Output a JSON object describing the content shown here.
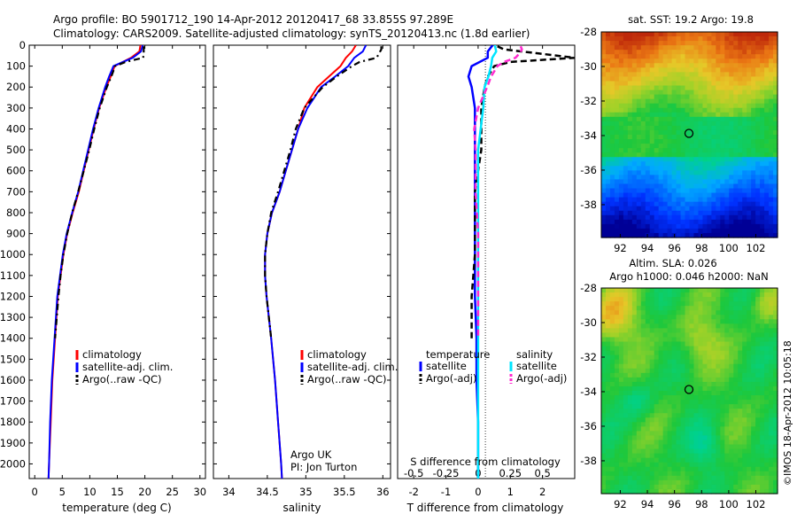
{
  "title_line1": "Argo profile: BO 5901712_190 14-Apr-2012 20120417_68 33.855S 97.289E",
  "title_line2": "Climatology: CARS2009. Satellite-adjusted climatology: synTS_20120413.nc (1.8d earlier)",
  "sst_title": "sat. SST: 19.2 Argo: 19.8",
  "sla_title_1": "Altim. SLA: 0.026",
  "sla_title_2": "Argo h1000: 0.046 h2000: NaN",
  "side_stamp": "©IMOS 18-Apr-2012 10:05:18",
  "argo_org": "Argo UK",
  "argo_pi": "PI: Jon Turton",
  "colors": {
    "clim": "#ff0000",
    "sat": "#0000ff",
    "argo": "#000000",
    "sal_sat": "#00e5ff",
    "sal_argo": "#ff2bd0"
  },
  "chart_data": [
    {
      "type": "line",
      "id": "temperature",
      "xlabel": "temperature (deg C)",
      "ylabel": "",
      "xlim": [
        -1,
        31
      ],
      "ylim": [
        2070,
        0
      ],
      "x_ticks": [
        0,
        5,
        10,
        15,
        20,
        25,
        30
      ],
      "y_ticks": [
        0,
        100,
        200,
        300,
        400,
        500,
        600,
        700,
        800,
        900,
        1000,
        1100,
        1200,
        1300,
        1400,
        1500,
        1600,
        1700,
        1800,
        1900,
        2000
      ],
      "legend": [
        "climatology",
        "satellite-adj. clim.",
        "Argo(..raw -QC)"
      ],
      "series": [
        {
          "name": "climatology",
          "depth": [
            0,
            30,
            60,
            100,
            150,
            200,
            300,
            400,
            500,
            600,
            700,
            800,
            900,
            1000,
            1200,
            1400,
            1600,
            1800,
            2000,
            2070
          ],
          "values": [
            19.2,
            19.0,
            17.5,
            14.5,
            13.8,
            13.0,
            11.7,
            10.7,
            9.8,
            8.9,
            8.0,
            6.9,
            5.9,
            5.2,
            4.2,
            3.7,
            3.2,
            2.9,
            2.6,
            2.5
          ]
        },
        {
          "name": "satellite-adj. clim.",
          "depth": [
            0,
            30,
            60,
            100,
            150,
            200,
            300,
            400,
            500,
            600,
            700,
            800,
            900,
            1000,
            1200,
            1400,
            1600,
            1800,
            2000,
            2070
          ],
          "values": [
            19.6,
            19.3,
            17.8,
            14.3,
            13.5,
            12.8,
            11.6,
            10.6,
            9.7,
            8.8,
            7.9,
            6.8,
            5.8,
            5.1,
            4.1,
            3.6,
            3.1,
            2.8,
            2.6,
            2.5
          ]
        },
        {
          "name": "Argo(..raw -QC)",
          "depth": [
            5,
            20,
            40,
            60,
            80,
            100,
            150,
            200,
            300,
            400,
            500,
            600,
            700,
            800,
            900,
            1000,
            1100,
            1200,
            1300,
            1400
          ],
          "values": [
            19.8,
            19.8,
            19.8,
            19.7,
            16.5,
            14.6,
            13.9,
            13.1,
            11.8,
            10.8,
            9.9,
            8.9,
            7.9,
            6.8,
            5.9,
            5.2,
            4.7,
            4.3,
            4.0,
            3.7
          ]
        }
      ]
    },
    {
      "type": "line",
      "id": "salinity",
      "xlabel": "salinity",
      "ylabel": "",
      "xlim": [
        33.8,
        36.1
      ],
      "ylim": [
        2070,
        0
      ],
      "x_ticks": [
        34,
        34.5,
        35,
        35.5,
        36
      ],
      "legend": [
        "climatology",
        "satellite-adj. clim.",
        "Argo(..raw -QC)"
      ],
      "series": [
        {
          "name": "climatology",
          "depth": [
            0,
            30,
            60,
            100,
            150,
            200,
            300,
            400,
            500,
            600,
            700,
            800,
            900,
            1000,
            1100,
            1200,
            1400,
            1600,
            1800,
            2000,
            2070
          ],
          "values": [
            35.65,
            35.6,
            35.52,
            35.45,
            35.3,
            35.15,
            34.98,
            34.9,
            34.82,
            34.74,
            34.66,
            34.56,
            34.5,
            34.47,
            34.47,
            34.49,
            34.55,
            34.6,
            34.64,
            34.68,
            34.69
          ]
        },
        {
          "name": "satellite-adj. clim.",
          "depth": [
            0,
            30,
            60,
            100,
            150,
            200,
            300,
            400,
            500,
            600,
            700,
            800,
            900,
            1000,
            1100,
            1200,
            1400,
            1600,
            1800,
            2000,
            2070
          ],
          "values": [
            35.78,
            35.74,
            35.63,
            35.55,
            35.38,
            35.2,
            35.02,
            34.9,
            34.82,
            34.74,
            34.66,
            34.56,
            34.5,
            34.47,
            34.47,
            34.49,
            34.55,
            34.6,
            34.64,
            34.68,
            34.69
          ]
        },
        {
          "name": "Argo(..raw -QC)",
          "depth": [
            5,
            20,
            40,
            60,
            80,
            100,
            150,
            200,
            300,
            400,
            500,
            600,
            700,
            800,
            900,
            1000,
            1100,
            1200,
            1300,
            1400
          ],
          "values": [
            35.98,
            35.98,
            35.95,
            35.92,
            35.7,
            35.6,
            35.4,
            35.22,
            34.98,
            34.87,
            34.8,
            34.72,
            34.64,
            34.55,
            34.5,
            34.47,
            34.47,
            34.49,
            34.52,
            34.55
          ]
        }
      ]
    },
    {
      "type": "line",
      "id": "difference",
      "xlabel": "T difference from climatology",
      "x2label": "S difference from climatology",
      "xlim": [
        -2.5,
        3.0
      ],
      "ylim": [
        2070,
        0
      ],
      "x_ticks": [
        -2,
        -1,
        0,
        1,
        2
      ],
      "x2_ticks": [
        "-0.5",
        "-0.25",
        "0",
        "0.25",
        "0.5"
      ],
      "legend_headers": [
        "temperature",
        "salinity"
      ],
      "legend": [
        "satellite",
        "Argo(-adj)",
        "satellite",
        "Argo(-adj)"
      ],
      "series": [
        {
          "name": "satellite",
          "group": "temperature",
          "depth": [
            0,
            30,
            60,
            100,
            150,
            200,
            300,
            400,
            500,
            600,
            700,
            800,
            900,
            1000,
            1100,
            1200,
            1400,
            1600,
            1800,
            2000,
            2070
          ],
          "values": [
            0.45,
            0.3,
            0.3,
            -0.2,
            -0.3,
            -0.2,
            -0.1,
            -0.1,
            -0.1,
            -0.1,
            -0.1,
            -0.1,
            -0.1,
            -0.1,
            -0.1,
            -0.1,
            -0.05,
            -0.05,
            0,
            0,
            0
          ]
        },
        {
          "name": "Argo(-adj)",
          "group": "temperature",
          "depth": [
            5,
            20,
            40,
            60,
            80,
            100,
            150,
            200,
            300,
            400,
            500,
            600,
            700,
            800,
            900,
            1000,
            1100,
            1200,
            1300,
            1400
          ],
          "values": [
            0.6,
            0.8,
            1.9,
            3.0,
            1.0,
            0.5,
            0.3,
            0.2,
            0.1,
            0.1,
            0.1,
            0.0,
            -0.1,
            -0.1,
            -0.1,
            -0.1,
            -0.15,
            -0.2,
            -0.2,
            -0.2
          ]
        },
        {
          "name": "satellite",
          "group": "salinity",
          "depth": [
            0,
            30,
            60,
            100,
            150,
            200,
            300,
            400,
            500,
            600,
            700,
            800,
            900,
            1000,
            1200,
            1400,
            1600,
            1800,
            2000,
            2070
          ],
          "values": [
            0.13,
            0.14,
            0.11,
            0.1,
            0.08,
            0.05,
            0.04,
            0.02,
            0.0,
            0.0,
            0.0,
            0.0,
            0.0,
            0.0,
            0.0,
            0.0,
            0.0,
            0.0,
            0.0,
            0.0
          ]
        },
        {
          "name": "Argo(-adj)",
          "group": "salinity",
          "depth": [
            5,
            20,
            40,
            60,
            80,
            100,
            150,
            200,
            300,
            400,
            500,
            600,
            700,
            800,
            900,
            1000,
            1100,
            1200,
            1300,
            1400
          ],
          "values": [
            0.33,
            0.34,
            0.32,
            0.29,
            0.2,
            0.15,
            0.1,
            0.07,
            -0.0,
            -0.03,
            -0.02,
            -0.02,
            -0.02,
            -0.01,
            0,
            0,
            0,
            0,
            0,
            0
          ]
        }
      ]
    },
    {
      "type": "heatmap",
      "id": "sst_map",
      "title": "sat. SST: 19.2 Argo: 19.8",
      "xlim": [
        90.6,
        103.6
      ],
      "ylim": [
        -39.9,
        -28.0
      ],
      "x_ticks": [
        92,
        94,
        96,
        98,
        100,
        102
      ],
      "y_ticks": [
        -38,
        -36,
        -34,
        -32,
        -30,
        -28
      ],
      "marker": {
        "lon": 97.289,
        "lat": -33.855
      }
    },
    {
      "type": "heatmap",
      "id": "sla_map",
      "title": "Altim. SLA: 0.026",
      "xlim": [
        90.6,
        103.6
      ],
      "ylim": [
        -39.9,
        -28.0
      ],
      "x_ticks": [
        92,
        94,
        96,
        98,
        100,
        102
      ],
      "y_ticks": [
        -38,
        -36,
        -34,
        -32,
        -30,
        -28
      ],
      "marker": {
        "lon": 97.289,
        "lat": -33.855
      }
    }
  ]
}
